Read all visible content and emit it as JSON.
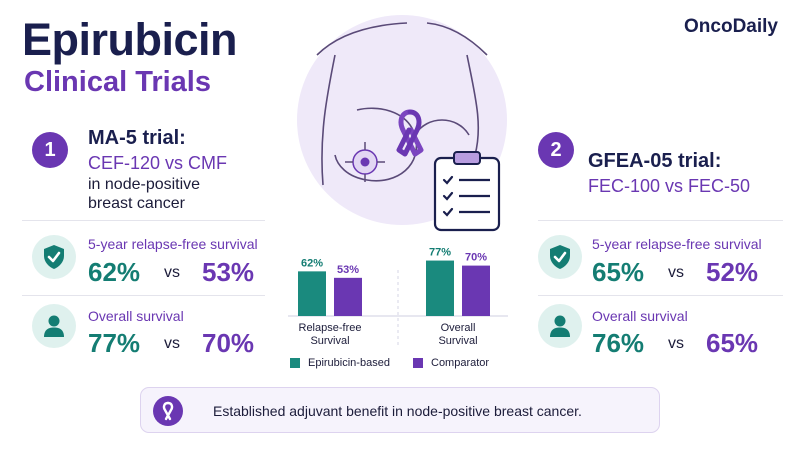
{
  "header": {
    "title": "Epirubicin",
    "subtitle": "Clinical Trials",
    "brand": "OncoDaily"
  },
  "trial1": {
    "number": "1",
    "name": "MA-5 trial:",
    "comparison": "CEF-120 vs CMF",
    "description_line1": "in node-positive",
    "description_line2": "breast cancer",
    "rfs": {
      "label": "5-year relapse-free survival",
      "epirubicin": "62%",
      "vs": "vs",
      "comparator": "53%"
    },
    "os": {
      "label": "Overall survival",
      "epirubicin": "77%",
      "vs": "vs",
      "comparator": "70%"
    }
  },
  "trial2": {
    "number": "2",
    "name": "GFEA-05 trial:",
    "comparison": "FEC-100 vs FEC-50",
    "rfs": {
      "label": "5-year relapse-free survival",
      "epirubicin": "65%",
      "vs": "vs",
      "comparator": "52%"
    },
    "os": {
      "label": "Overall survival",
      "epirubicin": "76%",
      "vs": "vs",
      "comparator": "65%"
    }
  },
  "chart_data": {
    "type": "bar",
    "categories": [
      "Relapse-free Survival",
      "Overall Survival"
    ],
    "series": [
      {
        "name": "Epirubicin-based",
        "values": [
          62,
          77
        ],
        "color": "#1a8a7e"
      },
      {
        "name": "Comparator",
        "values": [
          53,
          70
        ],
        "color": "#6a37b2"
      }
    ],
    "value_labels": [
      [
        "62%",
        "77%"
      ],
      [
        "53%",
        "70%"
      ]
    ],
    "legend_position": "bottom",
    "ylim": [
      0,
      100
    ]
  },
  "banner": {
    "text": "Established adjuvant benefit in node-positive breast cancer."
  },
  "colors": {
    "teal": "#147d73",
    "purple": "#6a37b2",
    "navy": "#1a1f4e"
  },
  "icons": {
    "shield": "shield-check-icon",
    "person": "person-icon",
    "ribbon": "awareness-ribbon-icon",
    "clipboard": "clipboard-checklist-icon",
    "target": "target-crosshair-icon"
  }
}
